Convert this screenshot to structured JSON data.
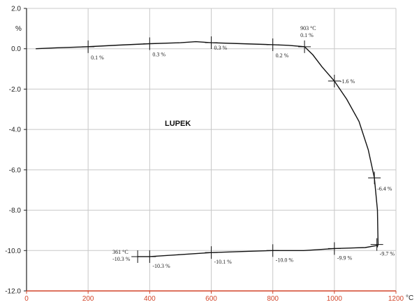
{
  "chart_data": {
    "type": "line",
    "title": "LUPEK",
    "ylabel": "%",
    "xlabel": "°C",
    "xlim": [
      0,
      1200
    ],
    "ylim": [
      -12.0,
      2.0
    ],
    "x_ticks": [
      "0",
      "200",
      "400",
      "600",
      "800",
      "1000",
      "1200"
    ],
    "y_ticks": [
      "2.0",
      "0.0",
      "-2.0",
      "-4.0",
      "-6.0",
      "-8.0",
      "-10.0",
      "-12.0"
    ],
    "grid": true,
    "colors": {
      "curve": "#111111",
      "x_axis": "#d2452a",
      "grid": "#c8c8c8"
    },
    "series": [
      {
        "x": [
          30,
          100,
          200,
          300,
          400,
          500,
          550,
          600,
          700,
          800,
          850,
          903,
          930,
          960,
          1000,
          1040,
          1080,
          1110,
          1130,
          1140,
          1141,
          1142,
          1140,
          1138,
          1100,
          1000,
          900,
          800,
          700,
          600,
          500,
          400,
          361
        ],
        "y": [
          0.0,
          0.05,
          0.1,
          0.18,
          0.25,
          0.3,
          0.35,
          0.3,
          0.25,
          0.2,
          0.17,
          0.1,
          -0.3,
          -0.9,
          -1.6,
          -2.5,
          -3.6,
          -5.0,
          -6.4,
          -8.0,
          -9.0,
          -9.7,
          -9.8,
          -9.75,
          -9.85,
          -9.9,
          -10.0,
          -10.0,
          -10.05,
          -10.1,
          -10.2,
          -10.3,
          -10.3
        ]
      }
    ],
    "markers": [
      {
        "x": 200,
        "y": 0.1,
        "label": "0.1 %"
      },
      {
        "x": 400,
        "y": 0.25,
        "label": "0.3 %"
      },
      {
        "x": 600,
        "y": 0.3,
        "label": "0.3 %"
      },
      {
        "x": 800,
        "y": 0.2,
        "label": "0.2 %"
      },
      {
        "x": 903,
        "y": 0.1,
        "label": "903 °C\n0.1 %"
      },
      {
        "x": 1000,
        "y": -1.6,
        "label": "-1.6 %"
      },
      {
        "x": 1130,
        "y": -6.4,
        "label": "-6.4 %"
      },
      {
        "x": 1138,
        "y": -9.7,
        "label": "-9.7 %"
      },
      {
        "x": 1000,
        "y": -9.9,
        "label": "-9.9 %"
      },
      {
        "x": 800,
        "y": -10.0,
        "label": "-10.0 %"
      },
      {
        "x": 600,
        "y": -10.1,
        "label": "-10.1 %"
      },
      {
        "x": 400,
        "y": -10.3,
        "label": "-10.3 %"
      },
      {
        "x": 361,
        "y": -10.3,
        "label": "361 °C\n-10.3 %"
      }
    ]
  }
}
